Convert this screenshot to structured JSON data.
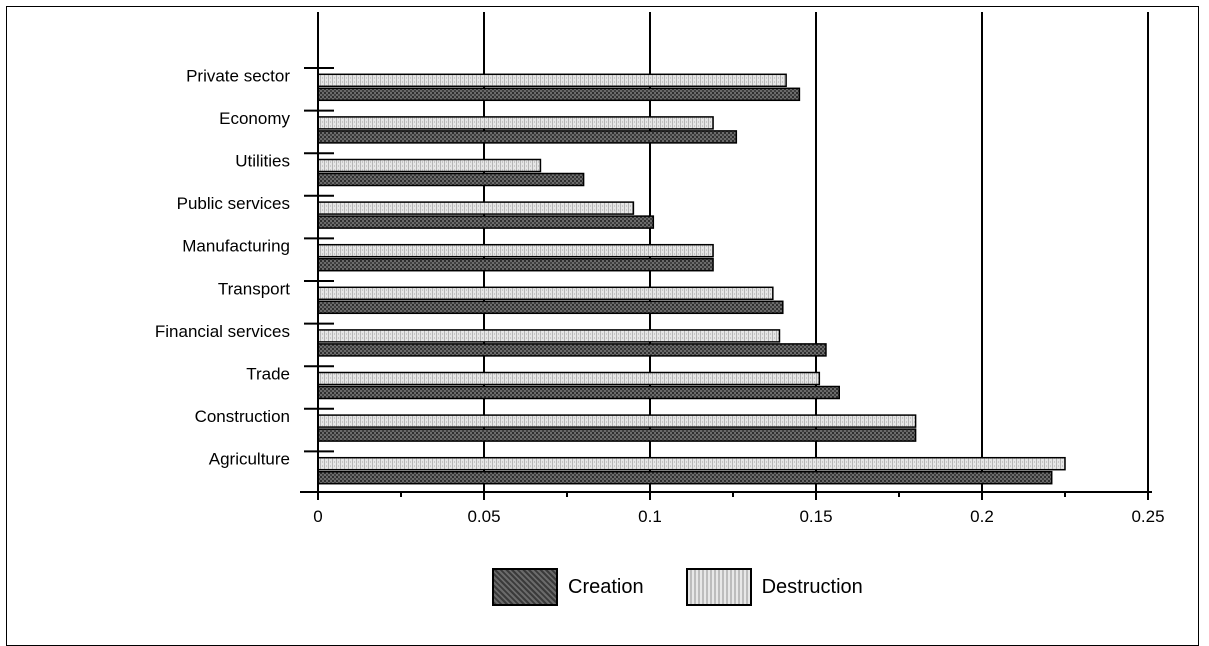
{
  "chart_data": {
    "type": "bar",
    "orientation": "horizontal",
    "categories": [
      "Private sector",
      "Economy",
      "Utilities",
      "Public services",
      "Manufacturing",
      "Transport",
      "Financial services",
      "Trade",
      "Construction",
      "Agriculture"
    ],
    "series": [
      {
        "name": "Destruction",
        "values": [
          0.141,
          0.119,
          0.067,
          0.095,
          0.119,
          0.137,
          0.139,
          0.151,
          0.18,
          0.225
        ]
      },
      {
        "name": "Creation",
        "values": [
          0.145,
          0.126,
          0.08,
          0.101,
          0.119,
          0.14,
          0.153,
          0.157,
          0.18,
          0.221
        ]
      }
    ],
    "xticks": [
      "0",
      "0.05",
      "0.1",
      "0.15",
      "0.2",
      "0.25"
    ],
    "xlim": [
      0,
      0.25
    ],
    "title": "",
    "xlabel": "",
    "ylabel": "",
    "grid": "vertical",
    "legend_position": "bottom",
    "colors": {
      "creation": "#555555",
      "destruction": "#d9d9d9",
      "grid": "#000000"
    }
  },
  "legend": [
    {
      "label": "Creation"
    },
    {
      "label": "Destruction"
    }
  ]
}
